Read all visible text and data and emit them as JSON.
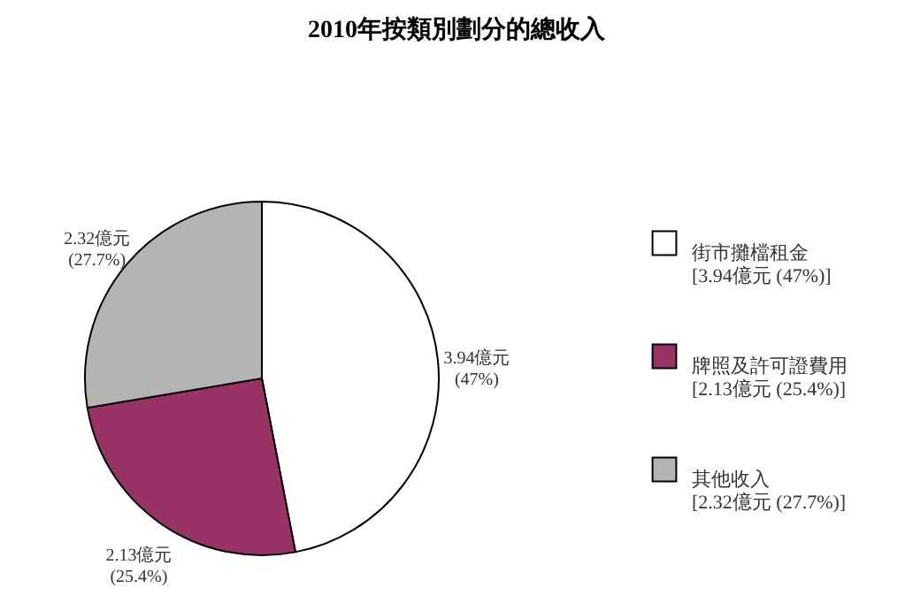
{
  "chart_data": {
    "type": "pie",
    "title": "2010年按類別劃分的總收入",
    "categories": [
      "街市攤檔租金\n[3.94億元 (47%)]",
      "牌照及許可證費用\n[2.13億元 (25.4%)]",
      "其他收入\n[2.32億元 (27.7%)]"
    ],
    "values": [
      3.94,
      2.13,
      2.32
    ],
    "colors": [
      "#ffffff",
      "#993366",
      "#b4b4b4"
    ],
    "value_labels": [
      "3.94億元\n(47%)",
      "2.13億元\n(25.4%)",
      "2.32億元\n(27.7%)"
    ],
    "legend": "right"
  }
}
